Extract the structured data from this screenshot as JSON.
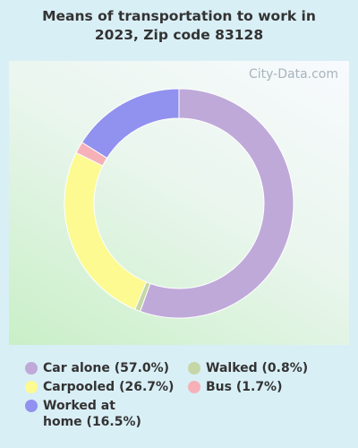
{
  "chart_data": {
    "type": "donut",
    "title": "Means of transportation to work in 2023, Zip code 83128",
    "watermark": "City-Data.com",
    "categories": [
      "Car alone",
      "Walked",
      "Carpooled",
      "Bus",
      "Worked at home"
    ],
    "values": [
      57.0,
      0.8,
      26.7,
      1.7,
      16.5
    ],
    "value_labels": [
      "(57.0%)",
      "(0.8%)",
      "(26.7%)",
      "(1.7%)",
      "(16.5%)"
    ],
    "colors": [
      "#bfa9d9",
      "#c5d7a6",
      "#fcfa91",
      "#f6b1b8",
      "#9191ef"
    ]
  }
}
